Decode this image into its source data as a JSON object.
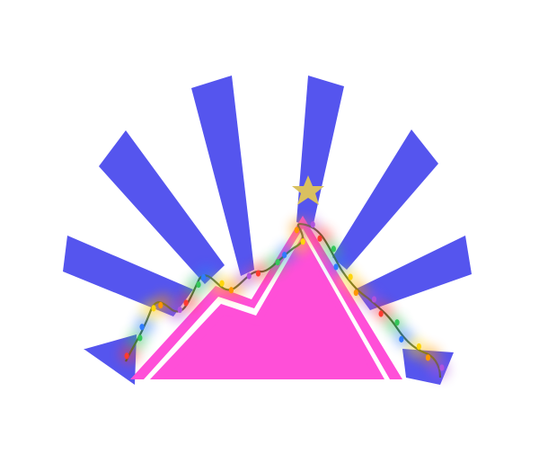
{
  "illustration": {
    "colors": {
      "background": "#ffffff",
      "rays": "#5555ee",
      "mountain": "#ff4fd8",
      "stripe": "#ffffff",
      "star": "#d9c060",
      "wire": "#3f5a2a"
    },
    "bulb_colors": [
      "#ff3b30",
      "#34c759",
      "#2f7bff",
      "#ffd60a",
      "#ff9500",
      "#af52de"
    ],
    "icons": [
      "sunburst-rays",
      "mountain",
      "christmas-lights",
      "star-icon"
    ]
  }
}
